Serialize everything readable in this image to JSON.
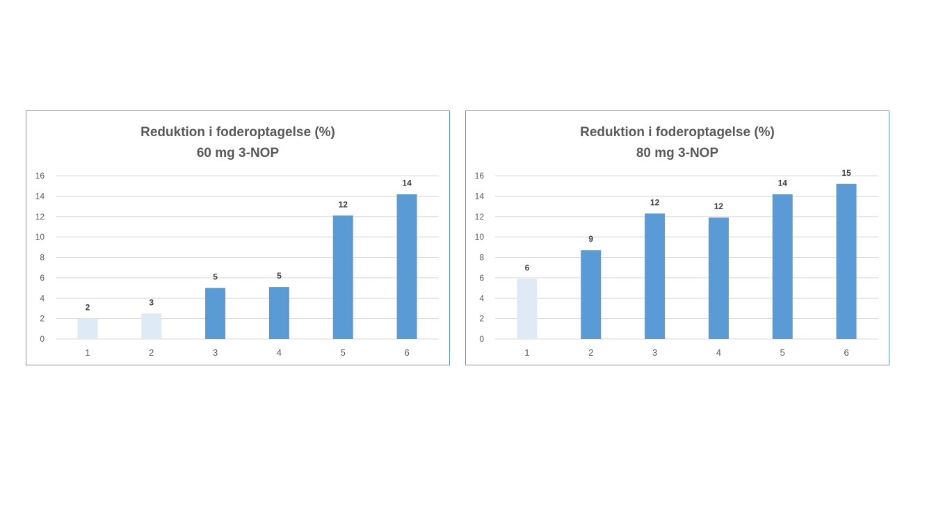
{
  "colors": {
    "bar_main": "#5b9bd5",
    "bar_light": "#deebf7",
    "border": "#5b9bd5"
  },
  "chart_data": [
    {
      "type": "bar",
      "title": "Reduktion i foderoptagelse (%)",
      "subtitle": "60 mg 3-NOP",
      "categories": [
        "1",
        "2",
        "3",
        "4",
        "5",
        "6"
      ],
      "values": [
        2.0,
        2.5,
        5.0,
        5.1,
        12.1,
        14.2
      ],
      "data_labels": [
        "2",
        "3",
        "5",
        "5",
        "12",
        "14"
      ],
      "bar_style": [
        "light",
        "light",
        "main",
        "main",
        "main",
        "main"
      ],
      "yticks": [
        "0",
        "2",
        "4",
        "6",
        "8",
        "10",
        "12",
        "14",
        "16"
      ],
      "ylim": [
        0,
        16
      ],
      "grid": true,
      "legend": "none"
    },
    {
      "type": "bar",
      "title": "Reduktion i foderoptagelse (%)",
      "subtitle": "80 mg 3-NOP",
      "categories": [
        "1",
        "2",
        "3",
        "4",
        "5",
        "6"
      ],
      "values": [
        5.9,
        8.7,
        12.3,
        11.9,
        14.2,
        15.2
      ],
      "data_labels": [
        "6",
        "9",
        "12",
        "12",
        "14",
        "15"
      ],
      "bar_style": [
        "light",
        "main",
        "main",
        "main",
        "main",
        "main"
      ],
      "yticks": [
        "0",
        "2",
        "4",
        "6",
        "8",
        "10",
        "12",
        "14",
        "16"
      ],
      "ylim": [
        0,
        16
      ],
      "grid": true,
      "legend": "none"
    }
  ]
}
